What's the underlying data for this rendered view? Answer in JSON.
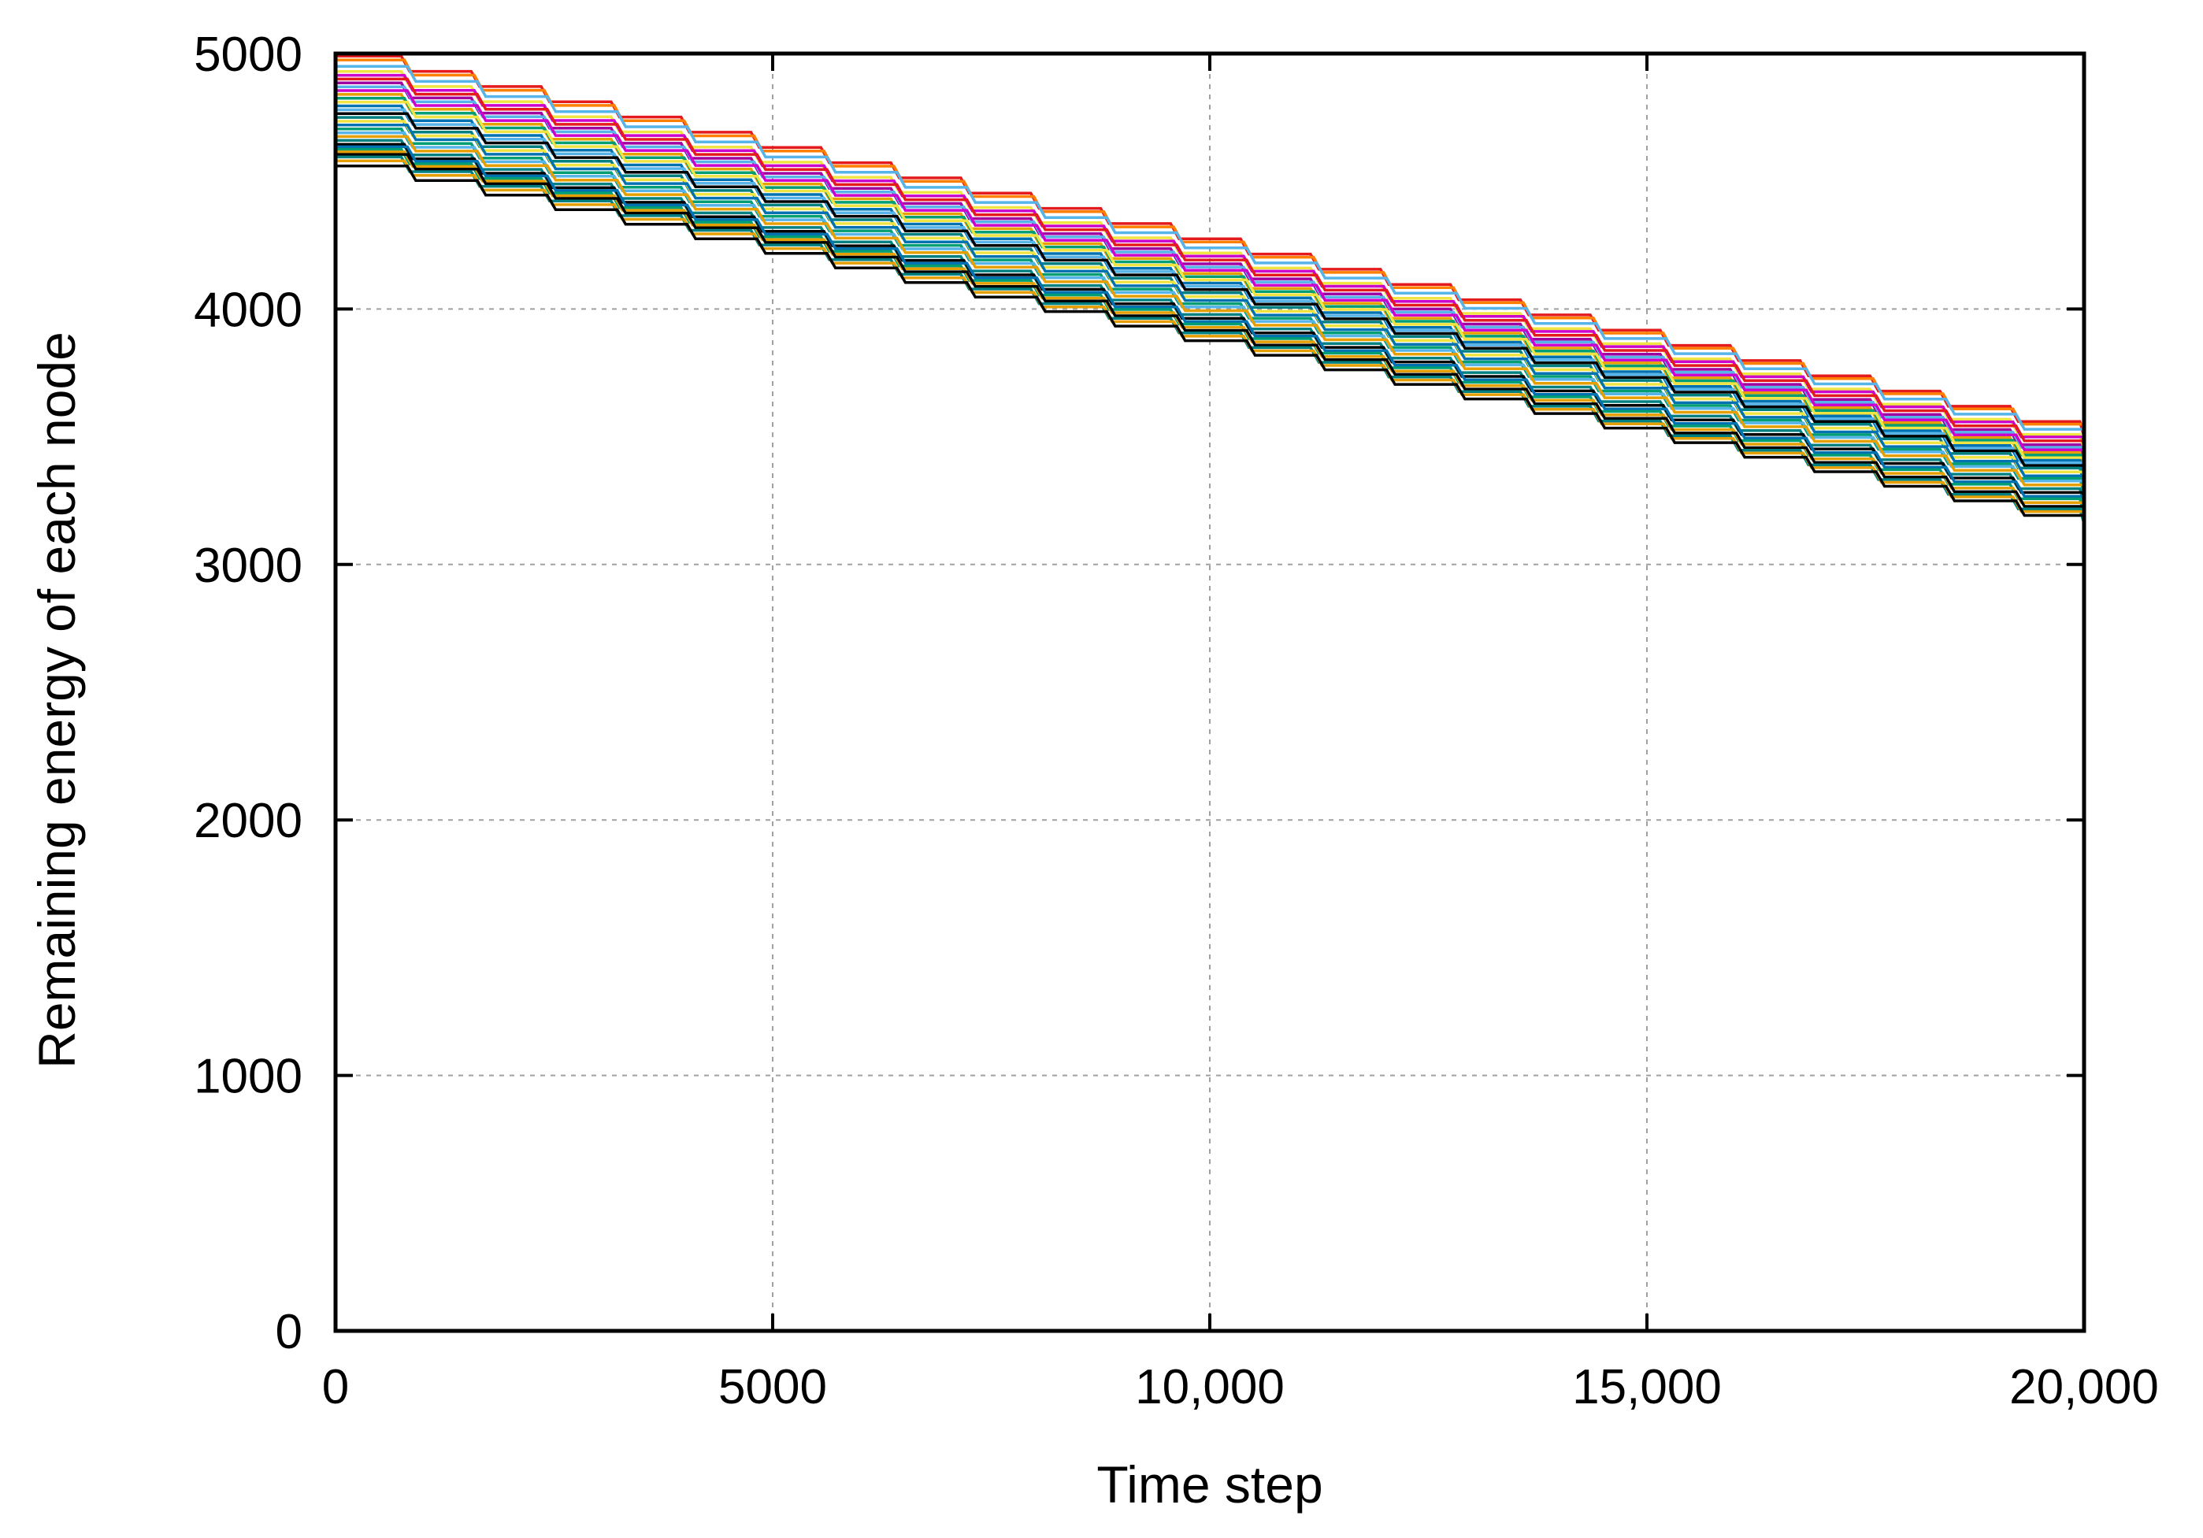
{
  "chart_data": {
    "type": "line",
    "title": "",
    "xlabel": "Time step",
    "ylabel": "Remaining energy of each node",
    "xlim": [
      0,
      20000
    ],
    "ylim": [
      0,
      5000
    ],
    "xticks": [
      0,
      5000,
      10000,
      15000,
      20000
    ],
    "xtick_labels": [
      "0",
      "5000",
      "10,000",
      "15,000",
      "20,000"
    ],
    "yticks": [
      0,
      1000,
      2000,
      3000,
      4000,
      5000
    ],
    "ytick_labels": [
      "0",
      "1000",
      "2000",
      "3000",
      "4000",
      "5000"
    ],
    "grid": true,
    "legend": "none",
    "step_interval": 800,
    "series": [
      {
        "start": 4990,
        "end": 3500,
        "color": "#e41a1c"
      },
      {
        "start": 4975,
        "end": 3490,
        "color": "#ff7f00"
      },
      {
        "start": 4950,
        "end": 3470,
        "color": "#56b4e9"
      },
      {
        "start": 4930,
        "end": 3450,
        "color": "#f0e442"
      },
      {
        "start": 4915,
        "end": 3440,
        "color": "#cc00cc"
      },
      {
        "start": 4900,
        "end": 3425,
        "color": "#e41a1c"
      },
      {
        "start": 4885,
        "end": 3410,
        "color": "#a000a0"
      },
      {
        "start": 4870,
        "end": 3400,
        "color": "#56b4e9"
      },
      {
        "start": 4855,
        "end": 3390,
        "color": "#cc00cc"
      },
      {
        "start": 4840,
        "end": 3380,
        "color": "#e69f00"
      },
      {
        "start": 4825,
        "end": 3370,
        "color": "#009e73"
      },
      {
        "start": 4810,
        "end": 3360,
        "color": "#f0e442"
      },
      {
        "start": 4795,
        "end": 3350,
        "color": "#0072b2"
      },
      {
        "start": 4780,
        "end": 3340,
        "color": "#56b4e9"
      },
      {
        "start": 4765,
        "end": 3330,
        "color": "#000000"
      },
      {
        "start": 4750,
        "end": 3320,
        "color": "#008080"
      },
      {
        "start": 4735,
        "end": 3305,
        "color": "#f0e442"
      },
      {
        "start": 4720,
        "end": 3290,
        "color": "#0072b2"
      },
      {
        "start": 4705,
        "end": 3280,
        "color": "#009e73"
      },
      {
        "start": 4690,
        "end": 3270,
        "color": "#56b4e9"
      },
      {
        "start": 4675,
        "end": 3255,
        "color": "#e69f00"
      },
      {
        "start": 4660,
        "end": 3240,
        "color": "#008080"
      },
      {
        "start": 4645,
        "end": 3225,
        "color": "#000000"
      },
      {
        "start": 4635,
        "end": 3210,
        "color": "#0072b2"
      },
      {
        "start": 4625,
        "end": 3200,
        "color": "#009e73"
      },
      {
        "start": 4615,
        "end": 3185,
        "color": "#e69f00"
      },
      {
        "start": 4605,
        "end": 3170,
        "color": "#000000"
      },
      {
        "start": 4595,
        "end": 3160,
        "color": "#008080"
      },
      {
        "start": 4580,
        "end": 3150,
        "color": "#e69f00"
      },
      {
        "start": 4560,
        "end": 3135,
        "color": "#000000"
      }
    ]
  }
}
